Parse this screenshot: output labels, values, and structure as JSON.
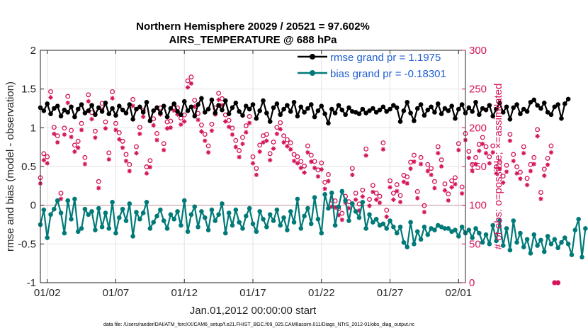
{
  "chart_data": {
    "type": "line",
    "title": "Northern Hemisphere 20029 / 20521 = 97.602%",
    "subtitle": "AIRS_TEMPERATURE @ 688 hPa",
    "xlabel": "Jan.01,2012 00:00:00 start",
    "ylabel": "rmse and bias (model - observation)",
    "y2label": "# of obs: o=possible; ×=assimilated",
    "footnote": "data file: /Users/raeder/DAI/ATM_forcXX/CAM6_setup/f.e21.FHIST_BGC.f09_025.CAM6assim.011/Diags_NTrS_2012-01/obs_diag_output.nc",
    "xlim": [
      0.5,
      31.5
    ],
    "ylim": [
      -1,
      2
    ],
    "y2lim": [
      0,
      300
    ],
    "xticks": [
      1,
      6,
      11,
      16,
      21,
      26,
      31
    ],
    "xtick_labels": [
      "01/02",
      "01/07",
      "01/12",
      "01/17",
      "01/22",
      "01/27",
      "02/01"
    ],
    "yticks": [
      -1,
      -0.5,
      0,
      0.5,
      1,
      1.5,
      2
    ],
    "ytick_labels": [
      "-1",
      "-0.5",
      "0",
      "0.5",
      "1",
      "1.5",
      "2"
    ],
    "y2ticks": [
      0,
      50,
      100,
      150,
      200,
      250,
      300
    ],
    "y2tick_labels": [
      "0",
      "50",
      "100",
      "150",
      "200",
      "250",
      "300"
    ],
    "grid": true,
    "legend_position": "top-right",
    "x_step": 0.25,
    "x_start": 0.5,
    "series": [
      {
        "name": "rmse grand pr = 1.1975",
        "axis": "left",
        "color": "#000000",
        "marker": "filled-circle",
        "values": [
          1.26,
          1.22,
          1.31,
          1.18,
          1.25,
          1.28,
          1.15,
          1.23,
          1.2,
          1.27,
          1.14,
          1.24,
          1.3,
          1.19,
          1.22,
          1.29,
          1.17,
          1.26,
          1.21,
          1.32,
          1.18,
          1.25,
          1.16,
          1.28,
          1.23,
          1.19,
          1.3,
          1.11,
          1.24,
          1.27,
          1.2,
          1.33,
          1.09,
          1.22,
          1.26,
          1.19,
          1.28,
          1.14,
          1.25,
          1.31,
          1.21,
          1.17,
          1.34,
          1.22,
          1.27,
          1.15,
          1.3,
          1.38,
          1.2,
          1.24,
          1.36,
          1.19,
          1.29,
          1.23,
          1.35,
          1.18,
          1.26,
          1.32,
          1.21,
          1.16,
          1.28,
          1.24,
          1.3,
          1.12,
          1.22,
          1.35,
          1.19,
          1.08,
          1.26,
          1.31,
          1.17,
          1.24,
          1.29,
          1.21,
          1.33,
          1.15,
          1.27,
          1.2,
          1.25,
          1.3,
          1.14,
          1.22,
          1.28,
          1.18,
          1.06,
          1.24,
          1.19,
          1.29,
          1.23,
          1.17,
          1.26,
          1.21,
          1.2,
          1.18,
          1.24,
          1.19,
          1.22,
          1.25,
          1.2,
          1.23,
          1.27,
          1.21,
          1.24,
          1.29,
          1.26,
          1.08,
          1.22,
          1.33,
          1.19,
          1.09,
          1.25,
          1.3,
          1.16,
          1.23,
          1.27,
          1.2,
          1.31,
          1.18,
          1.25,
          1.22,
          1.28,
          1.12,
          1.24,
          1.3,
          1.19,
          1.26,
          1.21,
          1.33,
          1.17,
          1.25,
          1.23,
          1.29,
          1.15,
          1.24,
          1.32,
          1.2,
          1.27,
          1.11,
          1.26,
          1.3,
          1.18,
          1.24,
          1.21,
          1.33,
          1.36,
          1.29,
          1.25,
          1.32,
          1.2,
          1.17,
          1.27,
          1.3,
          1.12,
          1.31,
          1.37
        ]
      },
      {
        "name": "bias grand pr = -0.18301",
        "axis": "left",
        "color": "#007a78",
        "marker": "filled-circle",
        "values": [
          -0.25,
          -0.06,
          -0.42,
          -0.12,
          -0.05,
          0.06,
          -0.1,
          -0.36,
          0.06,
          -0.18,
          0.08,
          -0.34,
          -0.3,
          -0.05,
          -0.12,
          -0.08,
          -0.32,
          -0.04,
          -0.28,
          -0.1,
          -0.3,
          0.04,
          -0.36,
          -0.16,
          -0.05,
          -0.2,
          0.02,
          -0.4,
          -0.09,
          -0.18,
          -0.1,
          0.04,
          -0.3,
          -0.22,
          -0.14,
          -0.06,
          -0.2,
          -0.3,
          -0.12,
          -0.18,
          -0.08,
          -0.26,
          0.06,
          -0.34,
          -0.12,
          -0.02,
          -0.28,
          -0.08,
          -0.16,
          -0.32,
          -0.06,
          -0.2,
          -0.12,
          0.02,
          -0.36,
          -0.1,
          -0.26,
          -0.06,
          -0.22,
          -0.3,
          -0.14,
          -0.04,
          -0.24,
          -0.34,
          -0.08,
          -0.18,
          -0.28,
          -0.12,
          -0.2,
          -0.06,
          -0.26,
          -0.16,
          -0.32,
          -0.08,
          -0.22,
          0.08,
          -0.3,
          -0.14,
          -0.04,
          -0.24,
          0.1,
          -0.18,
          -0.36,
          0.14,
          -0.04,
          0.16,
          -0.26,
          -0.02,
          0.18,
          0.06,
          -0.2,
          0.02,
          -0.08,
          -0.16,
          0.04,
          -0.3,
          -0.12,
          -0.22,
          -0.18,
          -0.26,
          -0.24,
          -0.3,
          -0.2,
          -0.28,
          -0.36,
          -0.28,
          -0.48,
          -0.54,
          -0.22,
          -0.5,
          -0.34,
          -0.44,
          -0.28,
          -0.38,
          -0.3,
          -0.32,
          -0.26,
          -0.28,
          -0.3,
          -0.3,
          -0.34,
          -0.32,
          -0.4,
          -0.28,
          -0.36,
          -0.32,
          -0.42,
          -0.3,
          -0.36,
          -0.48,
          -0.38,
          -0.5,
          -0.26,
          -0.46,
          -0.2,
          -0.52,
          -0.3,
          -0.58,
          -0.2,
          -0.48,
          -0.36,
          -0.54,
          -0.44,
          -0.62,
          -0.38,
          -0.52,
          -0.45,
          -0.6,
          -0.4,
          -0.5,
          -0.44,
          -0.55,
          -0.48,
          -0.42,
          -0.5,
          -0.64,
          -0.32,
          -0.18,
          -0.67,
          -0.3
        ]
      },
      {
        "name": "o=possible",
        "axis": "right",
        "color": "#d4145a",
        "marker": "circle",
        "values": [
          131,
          162,
          158,
          242,
          196,
          185,
          111,
          195,
          236,
          192,
          173,
          178,
          201,
          157,
          238,
          215,
          191,
          126,
          227,
          203,
          163,
          242,
          201,
          189,
          178,
          161,
          148,
          232,
          171,
          196,
          218,
          145,
          153,
          207,
          188,
          221,
          175,
          203,
          204,
          226,
          221,
          208,
          212,
          256,
          261,
          231,
          214,
          199,
          187,
          172,
          200,
          221,
          240,
          233,
          212,
          205,
          195,
          179,
          166,
          183,
          198,
          210,
          158,
          143,
          173,
          185,
          187,
          162,
          177,
          196,
          202,
          185,
          180,
          176,
          161,
          158,
          152,
          146,
          172,
          160,
          152,
          141,
          150,
          125,
          135,
          102,
          101,
          91,
          85,
          107,
          100,
          143,
          111,
          97,
          115,
          168,
          103,
          121,
          111,
          107,
          176,
          89,
          127,
          111,
          122,
          108,
          134,
          132,
          151,
          160,
          113,
          157,
          95,
          148,
          143,
          126,
          171,
          154,
          123,
          110,
          127,
          131,
          175,
          119,
          188,
          165,
          148,
          157,
          174,
          183,
          171,
          158,
          172,
          145,
          151,
          133,
          147,
          187,
          161,
          145,
          138,
          171,
          130,
          148,
          157,
          193,
          112,
          142,
          156,
          172,
          0,
          0
        ]
      },
      {
        "name": "×=assimilated",
        "axis": "right",
        "color": "#d4145a",
        "marker": "asterisk",
        "values": [
          130,
          160,
          156,
          241,
          194,
          183,
          110,
          193,
          234,
          190,
          171,
          176,
          199,
          155,
          236,
          213,
          189,
          124,
          225,
          201,
          161,
          240,
          199,
          187,
          176,
          159,
          146,
          230,
          169,
          194,
          216,
          143,
          151,
          205,
          186,
          219,
          173,
          201,
          202,
          224,
          219,
          206,
          210,
          254,
          259,
          229,
          212,
          197,
          185,
          170,
          198,
          219,
          238,
          231,
          210,
          203,
          193,
          177,
          164,
          181,
          196,
          208,
          156,
          141,
          171,
          183,
          185,
          160,
          175,
          194,
          200,
          183,
          178,
          174,
          159,
          156,
          150,
          144,
          170,
          158,
          150,
          139,
          148,
          123,
          133,
          100,
          99,
          89,
          83,
          105,
          98,
          141,
          109,
          95,
          113,
          166,
          101,
          119,
          109,
          105,
          174,
          87,
          125,
          109,
          120,
          106,
          132,
          130,
          149,
          158,
          111,
          155,
          93,
          146,
          141,
          124,
          169,
          152,
          121,
          108,
          125,
          129,
          173,
          117,
          186,
          163,
          146,
          155,
          172,
          181,
          169,
          156,
          170,
          143,
          149,
          131,
          145,
          185,
          159,
          143,
          136,
          169,
          128,
          146,
          155,
          191,
          110,
          140,
          154,
          170,
          0,
          0
        ]
      }
    ]
  }
}
